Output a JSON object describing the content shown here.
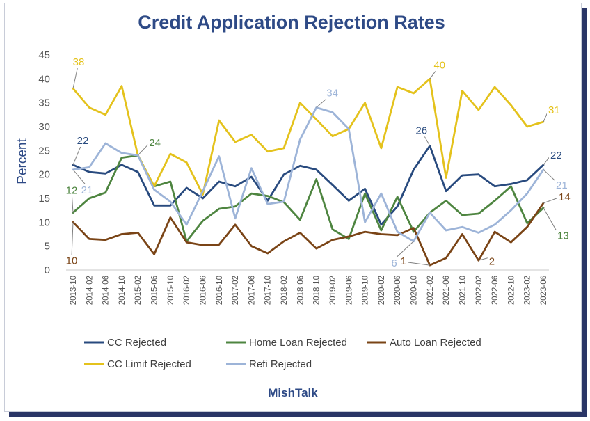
{
  "chart_data": {
    "type": "line",
    "title": "Credit Application Rejection Rates",
    "ylabel": "Percent",
    "xlabel": "",
    "ylim": [
      0,
      45
    ],
    "yticks": [
      0,
      5,
      10,
      15,
      20,
      25,
      30,
      35,
      40,
      45
    ],
    "grid": false,
    "legend_position": "bottom",
    "source_label": "MishTalk",
    "x": [
      "2013-10",
      "2014-02",
      "2014-06",
      "2014-10",
      "2015-02",
      "2015-06",
      "2015-10",
      "2016-02",
      "2016-06",
      "2016-10",
      "2017-02",
      "2017-06",
      "2017-10",
      "2018-02",
      "2018-06",
      "2018-10",
      "2019-02",
      "2019-06",
      "2019-10",
      "2020-02",
      "2020-06",
      "2020-10",
      "2021-02",
      "2021-06",
      "2021-10",
      "2022-02",
      "2022-06",
      "2022-10",
      "2023-02",
      "2023-06"
    ],
    "series": [
      {
        "name": "CC Rejected",
        "color": "#284a7e",
        "values": [
          22,
          20.5,
          20.2,
          22,
          20.5,
          13.5,
          13.5,
          17.2,
          15,
          18.5,
          17.5,
          19.5,
          14.5,
          20,
          21.8,
          21,
          17.8,
          14.5,
          17,
          9.5,
          13.3,
          21,
          26,
          16.5,
          19.8,
          20,
          17.5,
          18,
          18.8,
          22
        ]
      },
      {
        "name": "Home Loan Rejected",
        "color": "#4e8540",
        "values": [
          12,
          15,
          16.2,
          23.5,
          24,
          17.5,
          18.5,
          6,
          10.3,
          12.8,
          13.3,
          16,
          15.5,
          14.2,
          10.5,
          19,
          8.5,
          6.5,
          16,
          8.3,
          15.3,
          8,
          12,
          14.5,
          11.5,
          11.8,
          14.5,
          17.5,
          9.8,
          13
        ]
      },
      {
        "name": "Auto Loan Rejected",
        "color": "#7a4416",
        "values": [
          10,
          6.5,
          6.3,
          7.5,
          7.8,
          3.3,
          11,
          5.8,
          5.2,
          5.3,
          9.5,
          5,
          3.5,
          6,
          7.8,
          4.5,
          6.3,
          7,
          8,
          7.5,
          7.3,
          8.8,
          1,
          2.5,
          7.5,
          2,
          8,
          5.8,
          9,
          14
        ]
      },
      {
        "name": "CC Limit Rejected",
        "color": "#e4c21c",
        "values": [
          38,
          34,
          32.5,
          38.5,
          24,
          17.5,
          24.3,
          22.5,
          15.8,
          31.3,
          26.8,
          28.3,
          24.8,
          25.5,
          35,
          31.5,
          28,
          29.5,
          35,
          25.5,
          38.3,
          37,
          40,
          19.3,
          37.5,
          33.5,
          38.3,
          34.5,
          30,
          31
        ]
      },
      {
        "name": "Refi Rejected",
        "color": "#9db4d8",
        "values": [
          21,
          21.5,
          26.5,
          24.5,
          24,
          16.8,
          14.3,
          9.5,
          16.5,
          23.8,
          10.8,
          21.3,
          13.8,
          14.3,
          27.3,
          34,
          33,
          29.5,
          10,
          16,
          8,
          6,
          12,
          8.3,
          9,
          7.8,
          9.5,
          12.5,
          16,
          21
        ]
      }
    ],
    "annotations": [
      {
        "series": "CC Limit Rejected",
        "x": "2013-10",
        "text": "38"
      },
      {
        "series": "CC Rejected",
        "x": "2013-10",
        "text": "22"
      },
      {
        "series": "Refi Rejected",
        "x": "2013-10",
        "text": "21"
      },
      {
        "series": "Home Loan Rejected",
        "x": "2013-10",
        "text": "12"
      },
      {
        "series": "Auto Loan Rejected",
        "x": "2013-10",
        "text": "10"
      },
      {
        "series": "Home Loan Rejected",
        "x": "2015-02",
        "text": "24"
      },
      {
        "series": "Refi Rejected",
        "x": "2018-10",
        "text": "34"
      },
      {
        "series": "CC Limit Rejected",
        "x": "2021-02",
        "text": "40"
      },
      {
        "series": "CC Rejected",
        "x": "2021-02",
        "text": "26"
      },
      {
        "series": "Refi Rejected",
        "x": "2020-10",
        "text": "6"
      },
      {
        "series": "Auto Loan Rejected",
        "x": "2021-02",
        "text": "1"
      },
      {
        "series": "Auto Loan Rejected",
        "x": "2022-02",
        "text": "2"
      },
      {
        "series": "CC Limit Rejected",
        "x": "2023-06",
        "text": "31"
      },
      {
        "series": "CC Rejected",
        "x": "2023-06",
        "text": "22"
      },
      {
        "series": "Refi Rejected",
        "x": "2023-06",
        "text": "21"
      },
      {
        "series": "Auto Loan Rejected",
        "x": "2023-06",
        "text": "14"
      },
      {
        "series": "Home Loan Rejected",
        "x": "2023-06",
        "text": "13"
      }
    ]
  }
}
